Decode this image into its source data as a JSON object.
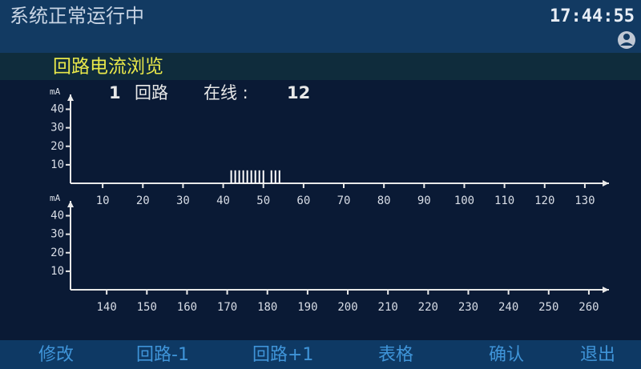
{
  "header": {
    "status": "系统正常运行中",
    "time": "17:44:55"
  },
  "page_title": "回路电流浏览",
  "loop_info": {
    "loop": 1,
    "loop_label": "回路",
    "online_label": "在线 :",
    "online_count": 12
  },
  "chart_data": [
    {
      "type": "bar",
      "y_unit": "mA",
      "x": [
        42,
        43,
        44,
        45,
        46,
        47,
        48,
        49,
        50,
        52,
        53,
        54
      ],
      "values": [
        7,
        7,
        7,
        7,
        7,
        7,
        7,
        7,
        7,
        7,
        7,
        7
      ],
      "color": "#ffffff",
      "xlim": [
        2,
        136
      ],
      "xticks": [
        10,
        20,
        30,
        40,
        50,
        60,
        70,
        80,
        90,
        100,
        110,
        120,
        130
      ],
      "ylim": [
        0,
        48
      ],
      "yticks": [
        10,
        20,
        30,
        40
      ]
    },
    {
      "type": "bar",
      "y_unit": "mA",
      "x": [],
      "values": [],
      "color": "#ffffff",
      "xlim": [
        131,
        265
      ],
      "xticks": [
        140,
        150,
        160,
        170,
        180,
        190,
        200,
        210,
        220,
        230,
        240,
        250,
        260
      ],
      "ylim": [
        0,
        48
      ],
      "yticks": [
        10,
        20,
        30,
        40
      ]
    }
  ],
  "footer": {
    "buttons": [
      "修改",
      "回路-1",
      "回路+1",
      "表格",
      "确认",
      "退出"
    ]
  }
}
